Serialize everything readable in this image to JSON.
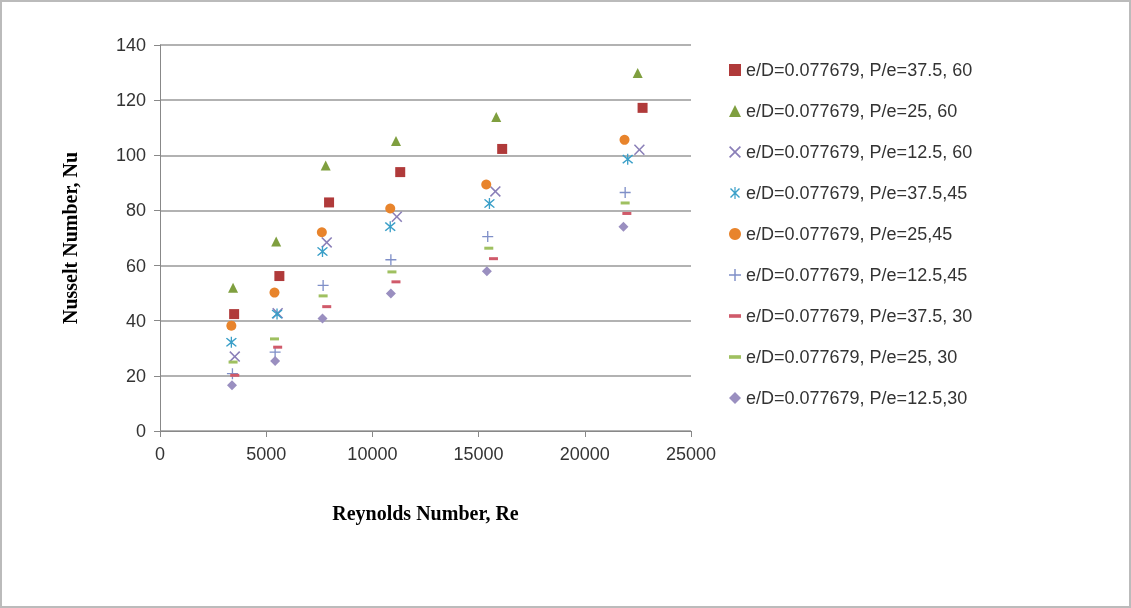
{
  "chart_data": {
    "type": "scatter",
    "xlabel": "Reynolds Number, Re",
    "ylabel": "Nusselt Number, Nu",
    "xlim": [
      0,
      25000
    ],
    "xticks": [
      0,
      5000,
      10000,
      15000,
      20000,
      25000
    ],
    "ylim": [
      0,
      140
    ],
    "yticks": [
      0,
      20,
      40,
      60,
      80,
      100,
      120,
      140
    ],
    "grid": "y",
    "legend": "right",
    "series": [
      {
        "name": "e/D=0.077679, P/e=37.5, 60",
        "color": "#b03a3a",
        "marker": "square",
        "x": [
          3490,
          5620,
          7960,
          11310,
          16110,
          22720
        ],
        "values": [
          42.4,
          56.2,
          82.9,
          93.9,
          102.3,
          117.2
        ]
      },
      {
        "name": "e/D=0.077679, P/e=25, 60",
        "color": "#7f9f3f",
        "marker": "triangle",
        "x": [
          3440,
          5470,
          7800,
          11110,
          15830,
          22490
        ],
        "values": [
          52,
          68.7,
          96.3,
          105.2,
          113.9,
          129.8
        ]
      },
      {
        "name": "e/D=0.077679, P/e=12.5, 60",
        "color": "#8a7fb8",
        "marker": "cross",
        "x": [
          3520,
          5540,
          7850,
          11150,
          15790,
          22570
        ],
        "values": [
          27,
          42.7,
          68.4,
          77.7,
          86.9,
          102
        ]
      },
      {
        "name": "e/D=0.077679, P/e=37.5,45",
        "color": "#3a9fc8",
        "marker": "star",
        "x": [
          3360,
          5510,
          7650,
          10840,
          15510,
          22020
        ],
        "values": [
          32.2,
          42.4,
          65.1,
          74.1,
          82.5,
          98.6
        ]
      },
      {
        "name": "e/D=0.077679, P/e=25,45",
        "color": "#e8842c",
        "marker": "circle",
        "x": [
          3360,
          5390,
          7620,
          10840,
          15360,
          21870
        ],
        "values": [
          38.2,
          50.2,
          72.1,
          80.7,
          89.4,
          105.6
        ]
      },
      {
        "name": "e/D=0.077679, P/e=12.5,45",
        "color": "#7f8fc8",
        "marker": "plus",
        "x": [
          3410,
          5420,
          7680,
          10870,
          15430,
          21900
        ],
        "values": [
          20.8,
          28.6,
          52.8,
          62.1,
          70.5,
          86.5
        ]
      },
      {
        "name": "e/D=0.077679, P/e=37.5, 30",
        "color": "#d05a6a",
        "x": [
          3520,
          5540,
          7850,
          11110,
          15700,
          21980
        ],
        "values": [
          20.2,
          30.4,
          45.1,
          54.1,
          62.5,
          78.9
        ]
      },
      {
        "name": "e/D=0.077679, P/e=25, 30",
        "color": "#9fc060",
        "x": [
          3440,
          5390,
          7680,
          10920,
          15480,
          21900
        ],
        "values": [
          25,
          33.4,
          49,
          57.7,
          66.3,
          82.7
        ]
      },
      {
        "name": "e/D=0.077679, P/e=12.5,30",
        "color": "#9a8fc0",
        "marker": "diamond",
        "x": [
          3390,
          5420,
          7650,
          10870,
          15390,
          21820
        ],
        "values": [
          16.6,
          25.4,
          40.8,
          49.9,
          57.9,
          74.1
        ]
      }
    ]
  }
}
